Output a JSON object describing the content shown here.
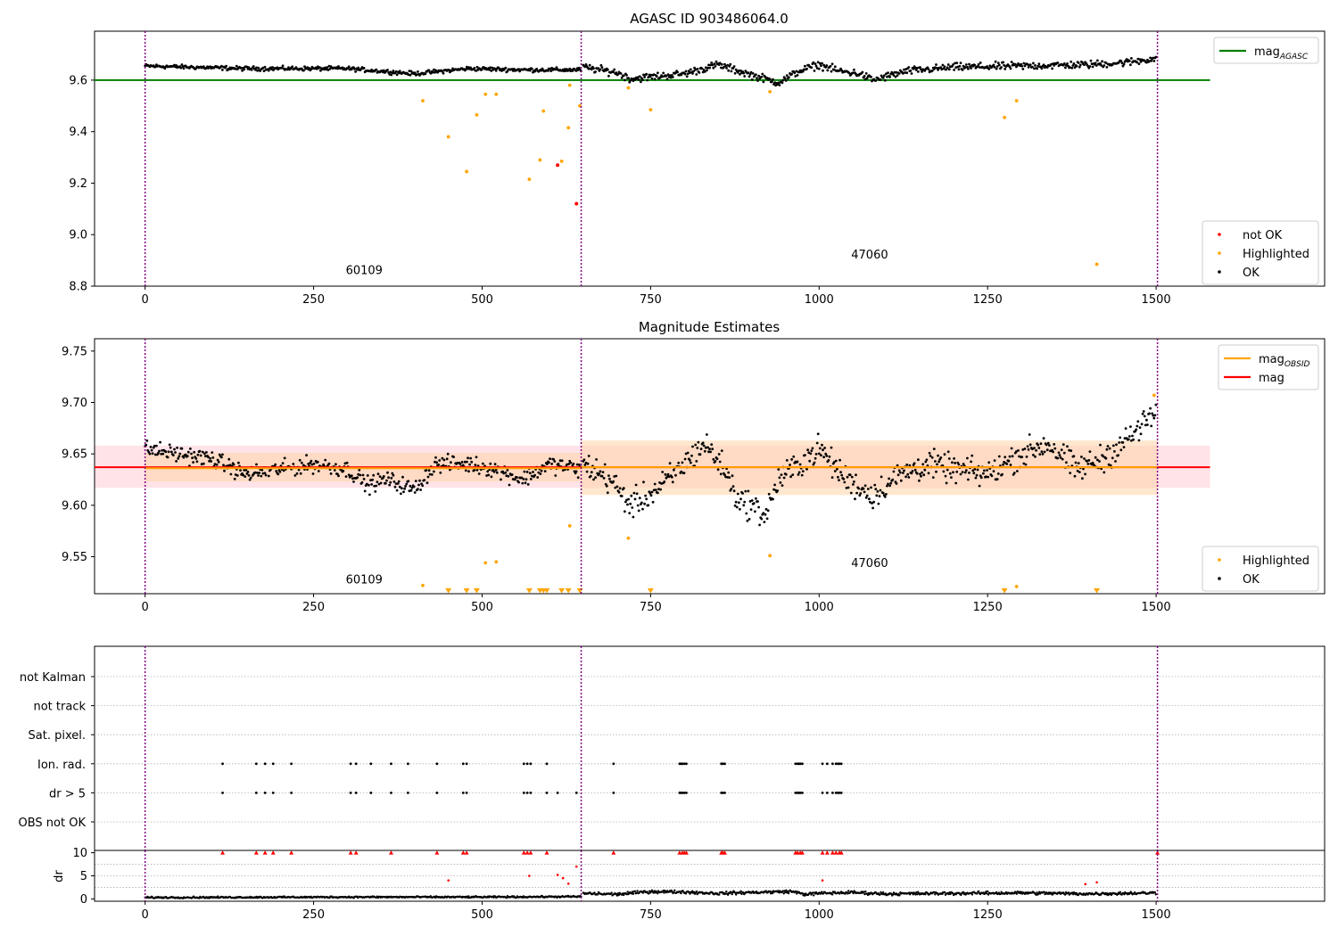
{
  "colors": {
    "ok": "#000000",
    "not_ok": "#ff0000",
    "highlighted": "#ffa500",
    "mag_agasc_line": "#008000",
    "mag_line": "#ff0000",
    "mag_obsid_line": "#ffa500",
    "mag_band": "#ffc0cb",
    "obsid_band": "#ffd3a8",
    "obsid_separator": "#800080",
    "grid": "#b0b0b0"
  },
  "chart_data": [
    {
      "id": "top",
      "type": "scatter",
      "title": "AGASC ID 903486064.0",
      "xlim": [
        -75,
        1750
      ],
      "ylim": [
        8.8,
        9.79
      ],
      "xticks": [
        0,
        250,
        500,
        750,
        1000,
        1250,
        1500
      ],
      "yticks": [
        8.8,
        9.0,
        9.2,
        9.4,
        9.6
      ],
      "ytick_labels": [
        "8.8",
        "9.0",
        "9.2",
        "9.4",
        "9.6"
      ],
      "legend_upper": {
        "position": "upper-right",
        "entries": [
          {
            "label": "mag",
            "sub": "AGASC",
            "kind": "line",
            "color_key": "mag_agasc_line"
          }
        ]
      },
      "legend_lower": {
        "position": "lower-right",
        "entries": [
          {
            "label": "not OK",
            "kind": "marker",
            "color_key": "not_ok"
          },
          {
            "label": "Highlighted",
            "kind": "marker",
            "color_key": "highlighted"
          },
          {
            "label": "OK",
            "kind": "marker",
            "color_key": "ok"
          }
        ]
      },
      "hlines": [
        {
          "name": "mag_AGASC",
          "y": 9.6,
          "x": [
            -75,
            1580
          ],
          "color_key": "mag_agasc_line"
        }
      ],
      "obsid_boundaries": [
        0,
        647,
        1502
      ],
      "obsid_labels": [
        {
          "text": "60109",
          "x": 325,
          "y": 8.847
        },
        {
          "text": "47060",
          "x": 1075,
          "y": 8.907
        }
      ],
      "ok_segments": [
        {
          "x": [
            0,
            150,
            300,
            400,
            480,
            560,
            647
          ],
          "y": [
            9.655,
            9.645,
            9.645,
            9.625,
            9.645,
            9.64,
            9.64
          ],
          "spread": 0.012
        },
        {
          "x": [
            650,
            700,
            720,
            800,
            850,
            900,
            940,
            970,
            1000,
            1030,
            1060,
            1080,
            1130,
            1200,
            1300,
            1400,
            1460,
            1500
          ],
          "y": [
            9.65,
            9.63,
            9.605,
            9.625,
            9.66,
            9.62,
            9.59,
            9.635,
            9.66,
            9.635,
            9.625,
            9.6,
            9.635,
            9.65,
            9.655,
            9.66,
            9.67,
            9.685
          ],
          "spread": 0.022
        }
      ],
      "highlighted_points": [
        {
          "x": 412,
          "y": 9.52
        },
        {
          "x": 450,
          "y": 9.38
        },
        {
          "x": 477,
          "y": 9.245
        },
        {
          "x": 492,
          "y": 9.465
        },
        {
          "x": 505,
          "y": 9.545
        },
        {
          "x": 521,
          "y": 9.545
        },
        {
          "x": 570,
          "y": 9.215
        },
        {
          "x": 586,
          "y": 9.29
        },
        {
          "x": 591,
          "y": 9.48
        },
        {
          "x": 618,
          "y": 9.285
        },
        {
          "x": 628,
          "y": 9.415
        },
        {
          "x": 630,
          "y": 9.58
        },
        {
          "x": 645,
          "y": 9.5
        },
        {
          "x": 717,
          "y": 9.57
        },
        {
          "x": 750,
          "y": 9.485
        },
        {
          "x": 927,
          "y": 9.555
        },
        {
          "x": 1275,
          "y": 9.455
        },
        {
          "x": 1293,
          "y": 9.52
        },
        {
          "x": 1412,
          "y": 8.885
        }
      ],
      "not_ok_points": [
        {
          "x": 612,
          "y": 9.27
        },
        {
          "x": 640,
          "y": 9.12
        }
      ]
    },
    {
      "id": "middle",
      "type": "scatter",
      "title": "Magnitude Estimates",
      "xlim": [
        -75,
        1750
      ],
      "ylim": [
        9.514,
        9.762
      ],
      "xticks": [
        0,
        250,
        500,
        750,
        1000,
        1250,
        1500
      ],
      "yticks": [
        9.55,
        9.6,
        9.65,
        9.7,
        9.75
      ],
      "ytick_labels": [
        "9.55",
        "9.60",
        "9.65",
        "9.70",
        "9.75"
      ],
      "legend_upper": {
        "position": "upper-right",
        "entries": [
          {
            "label": "mag",
            "sub": "OBSID",
            "kind": "line",
            "color_key": "mag_obsid_line"
          },
          {
            "label": "mag",
            "kind": "line",
            "color_key": "mag_line"
          }
        ]
      },
      "legend_lower": {
        "position": "lower-right",
        "entries": [
          {
            "label": "Highlighted",
            "kind": "marker",
            "color_key": "highlighted"
          },
          {
            "label": "OK",
            "kind": "marker",
            "color_key": "ok"
          }
        ]
      },
      "mag": {
        "value": 9.637,
        "x": [
          -75,
          1580
        ],
        "band": [
          9.617,
          9.658
        ]
      },
      "mag_obsid": [
        {
          "x": [
            0,
            647
          ],
          "value": 9.636,
          "band": [
            9.623,
            9.651
          ]
        },
        {
          "x": [
            647,
            1502
          ],
          "value": 9.637,
          "band": [
            9.61,
            9.663
          ]
        }
      ],
      "obsid_boundaries": [
        0,
        647,
        1502
      ],
      "obsid_labels": [
        {
          "text": "60109",
          "x": 325,
          "y": 9.524
        },
        {
          "text": "47060",
          "x": 1075,
          "y": 9.54
        }
      ],
      "ok_segments": [
        {
          "x": [
            0,
            50,
            100,
            150,
            200,
            250,
            300,
            330,
            360,
            400,
            430,
            480,
            520,
            560,
            600,
            647
          ],
          "y": [
            9.655,
            9.65,
            9.645,
            9.63,
            9.635,
            9.64,
            9.635,
            9.62,
            9.625,
            9.615,
            9.64,
            9.64,
            9.635,
            9.625,
            9.64,
            9.635
          ],
          "spread": 0.012
        },
        {
          "x": [
            650,
            690,
            720,
            760,
            800,
            830,
            860,
            880,
            900,
            920,
            940,
            970,
            1000,
            1040,
            1080,
            1120,
            1160,
            1200,
            1250,
            1300,
            1340,
            1380,
            1420,
            1460,
            1490,
            1500
          ],
          "y": [
            9.64,
            9.625,
            9.6,
            9.615,
            9.64,
            9.66,
            9.635,
            9.605,
            9.6,
            9.59,
            9.625,
            9.64,
            9.655,
            9.625,
            9.61,
            9.63,
            9.64,
            9.635,
            9.63,
            9.65,
            9.66,
            9.635,
            9.645,
            9.665,
            9.685,
            9.69
          ],
          "spread": 0.02
        }
      ],
      "highlighted_points": [
        {
          "x": 412,
          "y": 9.522
        },
        {
          "x": 505,
          "y": 9.544
        },
        {
          "x": 521,
          "y": 9.545
        },
        {
          "x": 630,
          "y": 9.58
        },
        {
          "x": 717,
          "y": 9.568
        },
        {
          "x": 927,
          "y": 9.551
        },
        {
          "x": 1293,
          "y": 9.521
        },
        {
          "x": 1497,
          "y": 9.707
        }
      ],
      "offscale_markers": [
        450,
        477,
        492,
        570,
        586,
        591,
        596,
        618,
        628,
        645,
        750,
        1275,
        1412
      ]
    },
    {
      "id": "flags",
      "type": "scatter",
      "xlim": [
        -75,
        1750
      ],
      "xticks": [
        0,
        250,
        500,
        750,
        1000,
        1250,
        1500
      ],
      "rows": [
        {
          "label": "not Kalman",
          "x": []
        },
        {
          "label": "not track",
          "x": []
        },
        {
          "label": "Sat. pixel.",
          "x": []
        },
        {
          "label": "Ion. rad.",
          "x": [
            115,
            165,
            178,
            190,
            217,
            305,
            313,
            335,
            365,
            390,
            433,
            472,
            477,
            562,
            567,
            572,
            596,
            695,
            793,
            795,
            797,
            800,
            803,
            855,
            857,
            860,
            965,
            968,
            970,
            972,
            975,
            1005,
            1012,
            1020,
            1025,
            1028,
            1030,
            1033
          ]
        },
        {
          "label": "dr > 5",
          "x": [
            115,
            165,
            178,
            190,
            217,
            305,
            313,
            335,
            365,
            390,
            433,
            472,
            477,
            562,
            567,
            572,
            596,
            612,
            640,
            695,
            793,
            795,
            797,
            800,
            803,
            855,
            857,
            860,
            965,
            968,
            970,
            972,
            975,
            1005,
            1012,
            1020,
            1025,
            1028,
            1030,
            1033
          ]
        },
        {
          "label": "OBS not OK",
          "x": []
        }
      ],
      "obsid_boundaries": [
        0,
        647,
        1502
      ]
    },
    {
      "id": "dr",
      "type": "scatter",
      "ylabel": "dr",
      "xlim": [
        -75,
        1750
      ],
      "ylim": [
        -0.5,
        10.5
      ],
      "yticks": [
        0,
        5,
        10
      ],
      "ytick_labels": [
        "0",
        "5",
        "10"
      ],
      "xticks": [
        0,
        250,
        500,
        750,
        1000,
        1250,
        1500
      ],
      "xtick_labels": [
        "0",
        "250",
        "500",
        "750",
        "1000",
        "1250",
        "1500"
      ],
      "obsid_boundaries": [
        0,
        647,
        1502
      ],
      "ok_segments": [
        {
          "x": [
            0,
            300,
            500,
            647
          ],
          "y": [
            0.3,
            0.4,
            0.4,
            0.5
          ],
          "spread": 0.25
        },
        {
          "x": [
            650,
            700,
            750,
            800,
            850,
            900,
            960,
            980,
            1000,
            1050,
            1100,
            1200,
            1300,
            1400,
            1500
          ],
          "y": [
            1.2,
            1.0,
            1.6,
            1.5,
            1.2,
            1.4,
            1.6,
            1.0,
            1.2,
            1.4,
            1.1,
            1.2,
            1.3,
            1.1,
            1.3
          ],
          "spread": 0.5
        }
      ],
      "not_ok_low": [
        {
          "x": 450,
          "y": 4.0
        },
        {
          "x": 570,
          "y": 5.0
        },
        {
          "x": 612,
          "y": 5.2
        },
        {
          "x": 620,
          "y": 4.5
        },
        {
          "x": 628,
          "y": 3.3
        },
        {
          "x": 640,
          "y": 7.0
        },
        {
          "x": 1005,
          "y": 4.0
        },
        {
          "x": 1395,
          "y": 3.2
        },
        {
          "x": 1412,
          "y": 3.6
        }
      ],
      "capped_x": [
        115,
        165,
        178,
        190,
        217,
        305,
        313,
        365,
        433,
        472,
        477,
        562,
        567,
        572,
        596,
        695,
        793,
        797,
        800,
        803,
        855,
        857,
        860,
        965,
        968,
        972,
        975,
        1005,
        1012,
        1020,
        1025,
        1030,
        1033,
        1502
      ]
    }
  ]
}
